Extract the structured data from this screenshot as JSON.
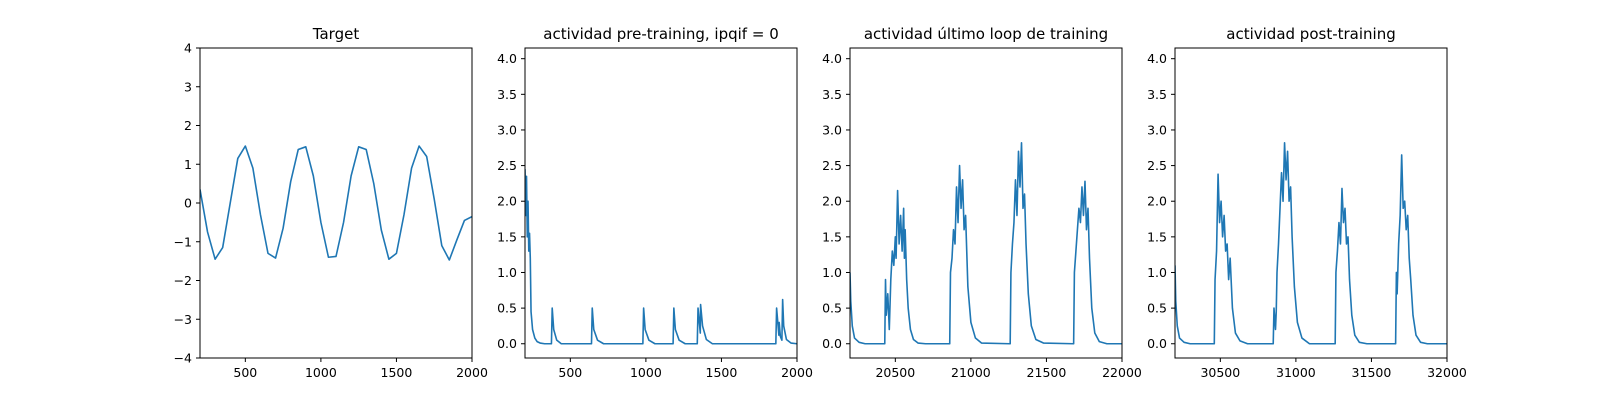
{
  "chart_data": [
    {
      "type": "line",
      "title": "Target",
      "xlim": [
        200,
        2000
      ],
      "ylim": [
        -4,
        4
      ],
      "xticks": [
        500,
        1000,
        1500,
        2000
      ],
      "yticks": [
        -4,
        -3,
        -2,
        -1,
        0,
        1,
        2,
        3,
        4
      ],
      "xticklabels": [
        "500",
        "1000",
        "1500",
        "2000"
      ],
      "yticklabels": [
        "−4",
        "−3",
        "−2",
        "−1",
        "0",
        "1",
        "2",
        "3",
        "4"
      ],
      "series": [
        {
          "color": "#1f77b4",
          "x": [
            200,
            250,
            300,
            350,
            400,
            450,
            500,
            550,
            600,
            650,
            700,
            750,
            800,
            850,
            900,
            950,
            1000,
            1050,
            1100,
            1150,
            1200,
            1250,
            1300,
            1350,
            1400,
            1450,
            1500,
            1550,
            1600,
            1650,
            1700,
            1750,
            1800,
            1850,
            1900,
            1950,
            2000
          ],
          "y": [
            0.35,
            -0.75,
            -1.45,
            -1.15,
            0.0,
            1.15,
            1.47,
            0.9,
            -0.3,
            -1.3,
            -1.42,
            -0.65,
            0.55,
            1.38,
            1.45,
            0.7,
            -0.5,
            -1.4,
            -1.38,
            -0.5,
            0.7,
            1.45,
            1.38,
            0.5,
            -0.7,
            -1.45,
            -1.3,
            -0.3,
            0.9,
            1.47,
            1.2,
            0.1,
            -1.1,
            -1.47,
            -0.95,
            -0.45,
            -0.35
          ]
        }
      ]
    },
    {
      "type": "line",
      "title": "actividad pre-training, ipqif = 0",
      "xlim": [
        200,
        2000
      ],
      "ylim": [
        -0.2,
        4.15
      ],
      "xticks": [
        500,
        1000,
        1500,
        2000
      ],
      "yticks": [
        0.0,
        0.5,
        1.0,
        1.5,
        2.0,
        2.5,
        3.0,
        3.5,
        4.0
      ],
      "xticklabels": [
        "500",
        "1000",
        "1500",
        "2000"
      ],
      "yticklabels": [
        "0.0",
        "0.5",
        "1.0",
        "1.5",
        "2.0",
        "2.5",
        "3.0",
        "3.5",
        "4.0"
      ],
      "series": [
        {
          "color": "#1f77b4",
          "x": [
            200,
            205,
            210,
            215,
            220,
            225,
            230,
            235,
            240,
            250,
            265,
            280,
            300,
            330,
            375,
            380,
            390,
            410,
            440,
            640,
            645,
            655,
            680,
            720,
            980,
            985,
            995,
            1020,
            1060,
            1180,
            1185,
            1195,
            1220,
            1260,
            1340,
            1345,
            1360,
            1362,
            1375,
            1400,
            1440,
            1860,
            1865,
            1880,
            1882,
            1890,
            1900,
            1905,
            1912,
            1930,
            1960,
            2000
          ],
          "y": [
            2.45,
            1.8,
            2.35,
            1.5,
            2.0,
            1.3,
            1.55,
            1.2,
            0.45,
            0.2,
            0.08,
            0.03,
            0.01,
            0.0,
            0.0,
            0.5,
            0.2,
            0.05,
            0.0,
            0.0,
            0.5,
            0.2,
            0.05,
            0.0,
            0.0,
            0.5,
            0.2,
            0.05,
            0.0,
            0.0,
            0.5,
            0.2,
            0.05,
            0.0,
            0.0,
            0.5,
            0.15,
            0.55,
            0.25,
            0.06,
            0.0,
            0.0,
            0.5,
            0.12,
            0.3,
            0.1,
            0.05,
            0.62,
            0.25,
            0.06,
            0.01,
            0.0
          ]
        }
      ]
    },
    {
      "type": "line",
      "title": "actividad último loop de training",
      "xlim": [
        20200,
        22000
      ],
      "ylim": [
        -0.2,
        4.15
      ],
      "xticks": [
        20500,
        21000,
        21500,
        22000
      ],
      "yticks": [
        0.0,
        0.5,
        1.0,
        1.5,
        2.0,
        2.5,
        3.0,
        3.5,
        4.0
      ],
      "xticklabels": [
        "20500",
        "21000",
        "21500",
        "22000"
      ],
      "yticklabels": [
        "0.0",
        "0.5",
        "1.0",
        "1.5",
        "2.0",
        "2.5",
        "3.0",
        "3.5",
        "4.0"
      ],
      "series": [
        {
          "color": "#1f77b4",
          "x": [
            20200,
            20205,
            20215,
            20230,
            20260,
            20300,
            20430,
            20435,
            20440,
            20450,
            20460,
            20470,
            20480,
            20490,
            20500,
            20505,
            20515,
            20525,
            20535,
            20545,
            20555,
            20560,
            20565,
            20575,
            20585,
            20600,
            20620,
            20650,
            20700,
            20860,
            20865,
            20875,
            20885,
            20895,
            20905,
            20915,
            20925,
            20935,
            20945,
            20955,
            20965,
            20980,
            21000,
            21030,
            21070,
            21260,
            21265,
            21275,
            21285,
            21295,
            21305,
            21315,
            21325,
            21335,
            21345,
            21355,
            21365,
            21380,
            21400,
            21430,
            21480,
            21680,
            21685,
            21695,
            21705,
            21715,
            21725,
            21735,
            21745,
            21755,
            21765,
            21775,
            21785,
            21800,
            21820,
            21850,
            21900,
            22000
          ],
          "y": [
            1.0,
            0.6,
            0.25,
            0.08,
            0.02,
            0.0,
            0.0,
            0.9,
            0.4,
            0.7,
            0.2,
            0.9,
            1.3,
            1.1,
            1.5,
            1.2,
            2.15,
            1.4,
            1.8,
            1.3,
            1.9,
            1.2,
            1.6,
            0.9,
            0.5,
            0.2,
            0.06,
            0.01,
            0.0,
            0.0,
            1.0,
            1.2,
            1.6,
            1.4,
            2.2,
            1.7,
            2.5,
            1.9,
            2.3,
            1.6,
            1.8,
            0.8,
            0.3,
            0.08,
            0.01,
            0.0,
            1.0,
            1.4,
            1.7,
            2.3,
            1.8,
            2.7,
            2.2,
            2.82,
            1.9,
            2.1,
            1.4,
            0.7,
            0.25,
            0.06,
            0.01,
            0.0,
            1.0,
            1.3,
            1.6,
            1.9,
            1.7,
            2.2,
            1.8,
            2.28,
            1.6,
            1.9,
            1.2,
            0.5,
            0.15,
            0.03,
            0.0,
            0.0
          ]
        }
      ]
    },
    {
      "type": "line",
      "title": "actividad post-training",
      "xlim": [
        30200,
        32000
      ],
      "ylim": [
        -0.2,
        4.15
      ],
      "xticks": [
        30500,
        31000,
        31500,
        32000
      ],
      "yticks": [
        0.0,
        0.5,
        1.0,
        1.5,
        2.0,
        2.5,
        3.0,
        3.5,
        4.0
      ],
      "xticklabels": [
        "30500",
        "31000",
        "31500",
        "32000"
      ],
      "yticklabels": [
        "0.0",
        "0.5",
        "1.0",
        "1.5",
        "2.0",
        "2.5",
        "3.0",
        "3.5",
        "4.0"
      ],
      "series": [
        {
          "color": "#1f77b4",
          "x": [
            30200,
            30205,
            30215,
            30230,
            30260,
            30300,
            30460,
            30465,
            30475,
            30485,
            30495,
            30505,
            30515,
            30525,
            30535,
            30545,
            30555,
            30565,
            30580,
            30600,
            30630,
            30680,
            30850,
            30855,
            30865,
            30870,
            30875,
            30885,
            30895,
            30905,
            30915,
            30925,
            30935,
            30945,
            30955,
            30965,
            30975,
            30990,
            31010,
            31040,
            31090,
            31260,
            31265,
            31275,
            31285,
            31295,
            31305,
            31315,
            31325,
            31335,
            31345,
            31355,
            31370,
            31390,
            31420,
            31470,
            31660,
            31665,
            31670,
            31680,
            31690,
            31700,
            31710,
            31720,
            31730,
            31740,
            31750,
            31760,
            31775,
            31795,
            31825,
            31870,
            32000
          ],
          "y": [
            1.1,
            0.6,
            0.25,
            0.08,
            0.02,
            0.0,
            0.0,
            0.9,
            1.3,
            2.38,
            1.7,
            2.0,
            1.5,
            1.8,
            1.3,
            1.4,
            0.9,
            1.2,
            0.5,
            0.15,
            0.04,
            0.0,
            0.0,
            0.5,
            0.2,
            0.45,
            1.0,
            1.4,
            1.9,
            2.4,
            2.0,
            2.82,
            2.3,
            2.7,
            2.0,
            2.2,
            1.5,
            0.8,
            0.3,
            0.08,
            0.0,
            0.0,
            1.0,
            1.3,
            1.7,
            1.4,
            2.18,
            1.7,
            1.9,
            1.4,
            1.5,
            0.9,
            0.4,
            0.12,
            0.02,
            0.0,
            0.0,
            1.0,
            0.7,
            1.4,
            1.8,
            2.65,
            1.9,
            2.0,
            1.6,
            1.8,
            1.2,
            0.9,
            0.4,
            0.12,
            0.02,
            0.0,
            0.0
          ]
        }
      ]
    }
  ]
}
